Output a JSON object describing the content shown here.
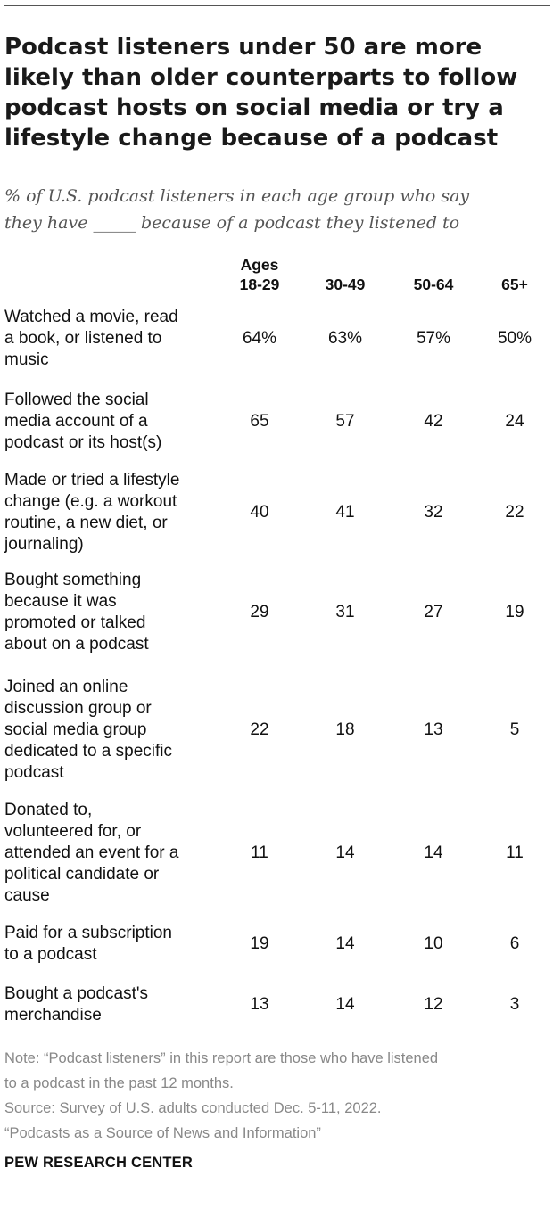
{
  "title": "Podcast listeners under 50 are more likely than older counterparts to follow podcast hosts on social media or try a lifestyle change because of a podcast",
  "subtitle_line1": "% of U.S. podcast listeners in each age group who say",
  "subtitle_line2": "they have _____ because of a podcast they listened to",
  "chart_data": {
    "type": "table",
    "columns": [
      {
        "line1": "Ages",
        "line2": "18-29"
      },
      {
        "line1": "",
        "line2": "30-49"
      },
      {
        "line1": "",
        "line2": "50-64"
      },
      {
        "line1": "",
        "line2": "65+"
      }
    ],
    "rows": [
      {
        "label": [
          "Watched a movie, read",
          "a book, or listened to",
          "music"
        ],
        "values": [
          "64%",
          "63%",
          "57%",
          "50%"
        ]
      },
      {
        "label": [
          "Followed the social",
          "media account of a",
          "podcast or its host(s)"
        ],
        "values": [
          "65",
          "57",
          "42",
          "24"
        ]
      },
      {
        "label": [
          "Made or tried a lifestyle",
          "change (e.g. a workout",
          "routine, a new diet, or",
          "journaling)"
        ],
        "values": [
          "40",
          "41",
          "32",
          "22"
        ]
      },
      {
        "label": [
          "Bought something",
          "because it was",
          "promoted or talked",
          "about on a podcast"
        ],
        "values": [
          "29",
          "31",
          "27",
          "19"
        ]
      },
      {
        "label": [
          "Joined an online",
          "discussion group or",
          "social media group",
          "dedicated to a specific",
          "podcast"
        ],
        "values": [
          "22",
          "18",
          "13",
          "5"
        ]
      },
      {
        "label": [
          "Donated to,",
          "volunteered for, or",
          "attended an event for a",
          "political candidate or",
          "cause"
        ],
        "values": [
          "11",
          "14",
          "14",
          "11"
        ]
      },
      {
        "label": [
          "Paid for a subscription",
          "to a podcast"
        ],
        "values": [
          "19",
          "14",
          "10",
          "6"
        ]
      },
      {
        "label": [
          "Bought a podcast's",
          "merchandise"
        ],
        "values": [
          "13",
          "14",
          "12",
          "3"
        ]
      }
    ]
  },
  "notes": [
    "Note: “Podcast listeners” in this report are those who have listened",
    "to a podcast in the past 12 months.",
    "Source: Survey of U.S. adults conducted Dec. 5-11, 2022.",
    "“Podcasts as a Source of News and Information”"
  ],
  "brand": "PEW RESEARCH CENTER"
}
